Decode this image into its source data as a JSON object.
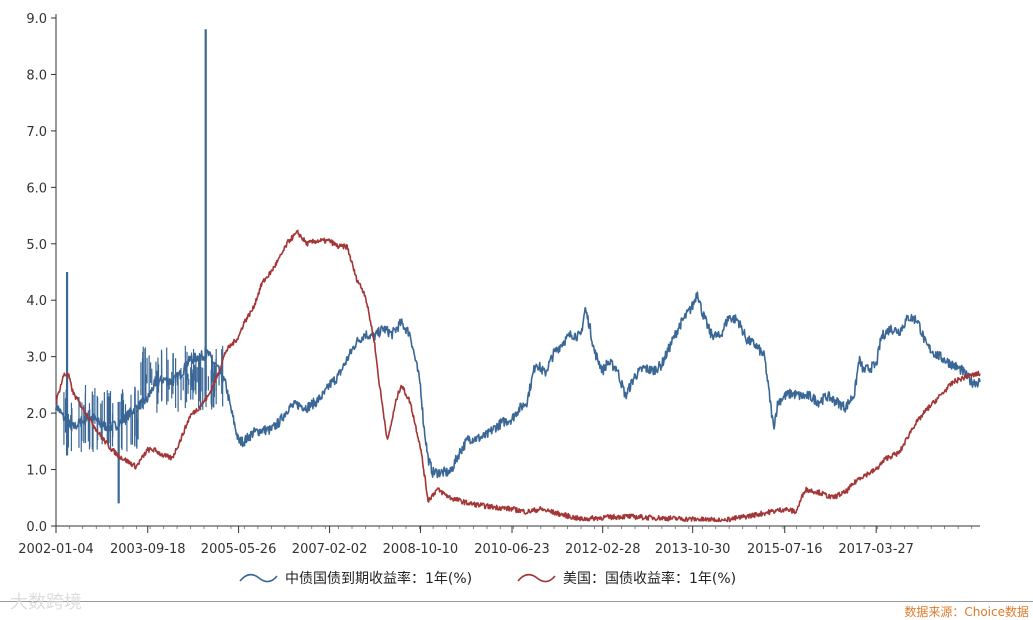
{
  "chart_data": {
    "type": "line",
    "xlim": [
      "2002-01-04",
      "2019-03-01"
    ],
    "ylim": [
      0,
      9
    ],
    "y_ticks": [
      "0.0",
      "1.0",
      "2.0",
      "3.0",
      "4.0",
      "5.0",
      "6.0",
      "7.0",
      "8.0",
      "9.0"
    ],
    "x_ticks": [
      "2002-01-04",
      "2003-09-18",
      "2005-05-26",
      "2007-02-02",
      "2008-10-10",
      "2010-06-23",
      "2012-02-28",
      "2013-10-30",
      "2015-07-16",
      "2017-03-27"
    ],
    "grid": false,
    "legend_position": "bottom",
    "series": [
      {
        "name": "中债国债到期收益率：1年(%)",
        "color": "#3a6796",
        "points": [
          [
            "2002-01-04",
            2.15
          ],
          [
            "2002-03-01",
            1.9
          ],
          [
            "2002-05-01",
            1.75
          ],
          [
            "2002-07-01",
            1.85
          ],
          [
            "2002-09-01",
            1.95
          ],
          [
            "2002-11-01",
            1.8
          ],
          [
            "2003-01-01",
            1.75
          ],
          [
            "2003-03-01",
            1.8
          ],
          [
            "2003-05-01",
            1.95
          ],
          [
            "2003-07-01",
            2.1
          ],
          [
            "2003-09-18",
            2.25
          ],
          [
            "2003-11-01",
            2.5
          ],
          [
            "2004-01-01",
            2.6
          ],
          [
            "2004-03-01",
            2.55
          ],
          [
            "2004-05-01",
            2.7
          ],
          [
            "2004-07-01",
            2.95
          ],
          [
            "2004-09-01",
            3.0
          ],
          [
            "2004-11-01",
            3.05
          ],
          [
            "2005-01-01",
            2.8
          ],
          [
            "2005-03-01",
            2.5
          ],
          [
            "2005-04-01",
            2.1
          ],
          [
            "2005-05-26",
            1.5
          ],
          [
            "2005-07-01",
            1.5
          ],
          [
            "2005-09-01",
            1.65
          ],
          [
            "2005-11-01",
            1.7
          ],
          [
            "2006-01-01",
            1.7
          ],
          [
            "2006-03-01",
            1.85
          ],
          [
            "2006-05-01",
            2.1
          ],
          [
            "2006-07-01",
            2.15
          ],
          [
            "2006-09-01",
            2.1
          ],
          [
            "2006-11-01",
            2.2
          ],
          [
            "2007-01-01",
            2.35
          ],
          [
            "2007-02-02",
            2.5
          ],
          [
            "2007-04-01",
            2.65
          ],
          [
            "2007-06-01",
            2.95
          ],
          [
            "2007-08-01",
            3.25
          ],
          [
            "2007-10-01",
            3.4
          ],
          [
            "2007-12-01",
            3.35
          ],
          [
            "2008-02-01",
            3.5
          ],
          [
            "2008-04-01",
            3.4
          ],
          [
            "2008-06-01",
            3.6
          ],
          [
            "2008-08-01",
            3.4
          ],
          [
            "2008-09-01",
            3.0
          ],
          [
            "2008-10-10",
            2.5
          ],
          [
            "2008-11-01",
            1.8
          ],
          [
            "2008-12-01",
            1.2
          ],
          [
            "2009-01-01",
            0.95
          ],
          [
            "2009-03-01",
            0.95
          ],
          [
            "2009-05-01",
            0.95
          ],
          [
            "2009-07-01",
            1.3
          ],
          [
            "2009-09-01",
            1.55
          ],
          [
            "2009-11-01",
            1.55
          ],
          [
            "2010-01-01",
            1.6
          ],
          [
            "2010-03-01",
            1.75
          ],
          [
            "2010-05-01",
            1.85
          ],
          [
            "2010-06-23",
            1.9
          ],
          [
            "2010-08-01",
            2.05
          ],
          [
            "2010-10-01",
            2.2
          ],
          [
            "2010-12-01",
            2.9
          ],
          [
            "2011-02-01",
            2.7
          ],
          [
            "2011-04-01",
            3.05
          ],
          [
            "2011-06-01",
            3.25
          ],
          [
            "2011-08-01",
            3.4
          ],
          [
            "2011-10-01",
            3.35
          ],
          [
            "2011-11-01",
            3.85
          ],
          [
            "2011-12-01",
            3.55
          ],
          [
            "2012-01-01",
            3.1
          ],
          [
            "2012-02-28",
            2.75
          ],
          [
            "2012-04-01",
            2.9
          ],
          [
            "2012-06-01",
            2.8
          ],
          [
            "2012-08-01",
            2.3
          ],
          [
            "2012-10-01",
            2.65
          ],
          [
            "2012-12-01",
            2.8
          ],
          [
            "2013-02-01",
            2.75
          ],
          [
            "2013-04-01",
            2.85
          ],
          [
            "2013-06-01",
            3.2
          ],
          [
            "2013-08-01",
            3.55
          ],
          [
            "2013-10-30",
            3.9
          ],
          [
            "2013-12-01",
            4.15
          ],
          [
            "2014-01-01",
            3.8
          ],
          [
            "2014-03-01",
            3.4
          ],
          [
            "2014-05-01",
            3.35
          ],
          [
            "2014-07-01",
            3.7
          ],
          [
            "2014-09-01",
            3.65
          ],
          [
            "2014-11-01",
            3.3
          ],
          [
            "2015-01-01",
            3.2
          ],
          [
            "2015-03-01",
            3.0
          ],
          [
            "2015-05-01",
            1.75
          ],
          [
            "2015-06-01",
            2.2
          ],
          [
            "2015-07-16",
            2.3
          ],
          [
            "2015-09-01",
            2.35
          ],
          [
            "2015-11-01",
            2.3
          ],
          [
            "2016-01-01",
            2.3
          ],
          [
            "2016-03-01",
            2.2
          ],
          [
            "2016-05-01",
            2.3
          ],
          [
            "2016-07-01",
            2.2
          ],
          [
            "2016-09-01",
            2.1
          ],
          [
            "2016-11-01",
            2.35
          ],
          [
            "2016-12-01",
            2.95
          ],
          [
            "2017-01-01",
            2.75
          ],
          [
            "2017-03-27",
            2.85
          ],
          [
            "2017-05-01",
            3.35
          ],
          [
            "2017-07-01",
            3.5
          ],
          [
            "2017-09-01",
            3.45
          ],
          [
            "2017-11-01",
            3.7
          ],
          [
            "2018-01-01",
            3.65
          ],
          [
            "2018-03-01",
            3.2
          ],
          [
            "2018-05-01",
            3.05
          ],
          [
            "2018-07-01",
            2.95
          ],
          [
            "2018-09-01",
            2.85
          ],
          [
            "2018-11-01",
            2.75
          ],
          [
            "2019-01-01",
            2.55
          ],
          [
            "2019-03-01",
            2.55
          ]
        ],
        "spikes": [
          {
            "date": "2002-03-20",
            "high": 4.5,
            "low": 1.25
          },
          {
            "date": "2003-03-05",
            "high": 2.2,
            "low": 0.4
          },
          {
            "date": "2004-10-15",
            "high": 8.8,
            "low": 2.4
          }
        ]
      },
      {
        "name": "美国：国债收益率：1年(%)",
        "color": "#a33636",
        "points": [
          [
            "2002-01-04",
            2.2
          ],
          [
            "2002-03-01",
            2.7
          ],
          [
            "2002-04-01",
            2.65
          ],
          [
            "2002-05-01",
            2.35
          ],
          [
            "2002-07-01",
            2.1
          ],
          [
            "2002-09-01",
            1.85
          ],
          [
            "2002-11-01",
            1.6
          ],
          [
            "2003-01-01",
            1.4
          ],
          [
            "2003-03-01",
            1.25
          ],
          [
            "2003-05-01",
            1.15
          ],
          [
            "2003-07-01",
            1.05
          ],
          [
            "2003-09-18",
            1.35
          ],
          [
            "2003-11-01",
            1.35
          ],
          [
            "2004-01-01",
            1.25
          ],
          [
            "2004-03-01",
            1.2
          ],
          [
            "2004-05-01",
            1.55
          ],
          [
            "2004-07-01",
            1.95
          ],
          [
            "2004-09-01",
            2.1
          ],
          [
            "2004-11-01",
            2.3
          ],
          [
            "2005-01-01",
            2.65
          ],
          [
            "2005-03-01",
            3.1
          ],
          [
            "2005-05-26",
            3.35
          ],
          [
            "2005-07-01",
            3.6
          ],
          [
            "2005-09-01",
            3.85
          ],
          [
            "2005-11-01",
            4.3
          ],
          [
            "2006-01-01",
            4.5
          ],
          [
            "2006-03-01",
            4.75
          ],
          [
            "2006-05-01",
            5.05
          ],
          [
            "2006-07-01",
            5.2
          ],
          [
            "2006-09-01",
            5.0
          ],
          [
            "2006-11-01",
            5.05
          ],
          [
            "2007-01-01",
            5.05
          ],
          [
            "2007-02-02",
            5.05
          ],
          [
            "2007-04-01",
            4.95
          ],
          [
            "2007-06-01",
            4.95
          ],
          [
            "2007-08-01",
            4.4
          ],
          [
            "2007-10-01",
            4.1
          ],
          [
            "2007-12-01",
            3.3
          ],
          [
            "2008-01-01",
            2.6
          ],
          [
            "2008-03-01",
            1.5
          ],
          [
            "2008-05-01",
            2.25
          ],
          [
            "2008-06-01",
            2.5
          ],
          [
            "2008-08-01",
            2.2
          ],
          [
            "2008-10-10",
            1.4
          ],
          [
            "2008-11-01",
            1.0
          ],
          [
            "2008-12-01",
            0.45
          ],
          [
            "2009-02-01",
            0.65
          ],
          [
            "2009-05-01",
            0.5
          ],
          [
            "2009-09-01",
            0.4
          ],
          [
            "2010-01-01",
            0.35
          ],
          [
            "2010-06-23",
            0.3
          ],
          [
            "2010-10-01",
            0.25
          ],
          [
            "2011-01-01",
            0.3
          ],
          [
            "2011-06-01",
            0.2
          ],
          [
            "2011-10-01",
            0.12
          ],
          [
            "2012-02-28",
            0.15
          ],
          [
            "2012-08-01",
            0.17
          ],
          [
            "2013-01-01",
            0.15
          ],
          [
            "2013-10-30",
            0.12
          ],
          [
            "2014-06-01",
            0.1
          ],
          [
            "2015-01-01",
            0.2
          ],
          [
            "2015-07-16",
            0.3
          ],
          [
            "2015-10-01",
            0.25
          ],
          [
            "2015-12-01",
            0.65
          ],
          [
            "2016-03-01",
            0.6
          ],
          [
            "2016-06-01",
            0.5
          ],
          [
            "2016-09-01",
            0.6
          ],
          [
            "2016-12-01",
            0.85
          ],
          [
            "2017-03-27",
            1.0
          ],
          [
            "2017-06-01",
            1.2
          ],
          [
            "2017-09-01",
            1.3
          ],
          [
            "2017-12-01",
            1.75
          ],
          [
            "2018-03-01",
            2.05
          ],
          [
            "2018-06-01",
            2.3
          ],
          [
            "2018-09-01",
            2.55
          ],
          [
            "2018-12-01",
            2.65
          ],
          [
            "2019-03-01",
            2.7
          ]
        ]
      }
    ]
  },
  "watermark": "大数跨境",
  "source": "数据来源：Choice数据"
}
